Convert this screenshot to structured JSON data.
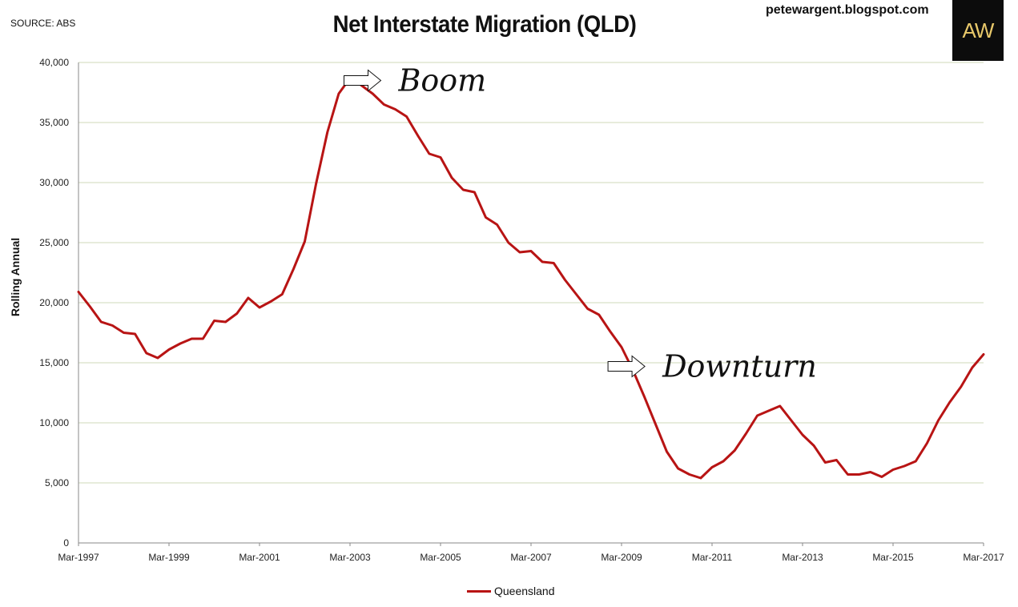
{
  "header": {
    "source": "SOURCE: ABS",
    "title": "Net Interstate Migration (QLD)",
    "blog": "petewargent.blogspot.com",
    "logo_text": "AW"
  },
  "chart_data": {
    "type": "line",
    "title": "Net Interstate Migration (QLD)",
    "xlabel": "",
    "ylabel": "Rolling Annual",
    "ylim": [
      0,
      40000
    ],
    "yticks": [
      0,
      5000,
      10000,
      15000,
      20000,
      25000,
      30000,
      35000,
      40000
    ],
    "ytick_labels": [
      "0",
      "5,000",
      "10,000",
      "15,000",
      "20,000",
      "25,000",
      "30,000",
      "35,000",
      "40,000"
    ],
    "xlim": [
      "Mar-1997",
      "Mar-2017"
    ],
    "xtick_labels": [
      "Mar-1997",
      "Mar-1999",
      "Mar-2001",
      "Mar-2003",
      "Mar-2005",
      "Mar-2007",
      "Mar-2009",
      "Mar-2011",
      "Mar-2013",
      "Mar-2015",
      "Mar-2017"
    ],
    "grid": true,
    "legend_position": "bottom-center",
    "series_color": "#b81414",
    "series": [
      {
        "name": "Queensland",
        "x": [
          "Mar-1997",
          "Jun-1997",
          "Sep-1997",
          "Dec-1997",
          "Mar-1998",
          "Jun-1998",
          "Sep-1998",
          "Dec-1998",
          "Mar-1999",
          "Jun-1999",
          "Sep-1999",
          "Dec-1999",
          "Mar-2000",
          "Jun-2000",
          "Sep-2000",
          "Dec-2000",
          "Mar-2001",
          "Jun-2001",
          "Sep-2001",
          "Dec-2001",
          "Mar-2002",
          "Jun-2002",
          "Sep-2002",
          "Dec-2002",
          "Mar-2003",
          "Jun-2003",
          "Sep-2003",
          "Dec-2003",
          "Mar-2004",
          "Jun-2004",
          "Sep-2004",
          "Dec-2004",
          "Mar-2005",
          "Jun-2005",
          "Sep-2005",
          "Dec-2005",
          "Mar-2006",
          "Jun-2006",
          "Sep-2006",
          "Dec-2006",
          "Mar-2007",
          "Jun-2007",
          "Sep-2007",
          "Dec-2007",
          "Mar-2008",
          "Jun-2008",
          "Sep-2008",
          "Dec-2008",
          "Mar-2009",
          "Jun-2009",
          "Sep-2009",
          "Dec-2009",
          "Mar-2010",
          "Jun-2010",
          "Sep-2010",
          "Dec-2010",
          "Mar-2011",
          "Jun-2011",
          "Sep-2011",
          "Dec-2011",
          "Mar-2012",
          "Jun-2012",
          "Sep-2012",
          "Dec-2012",
          "Mar-2013",
          "Jun-2013",
          "Sep-2013",
          "Dec-2013",
          "Mar-2014",
          "Jun-2014",
          "Sep-2014",
          "Dec-2014",
          "Mar-2015",
          "Jun-2015",
          "Sep-2015",
          "Dec-2015",
          "Mar-2016",
          "Jun-2016",
          "Sep-2016",
          "Dec-2016",
          "Mar-2017"
        ],
        "values": [
          20900,
          19700,
          18400,
          18100,
          17500,
          17400,
          15800,
          15400,
          16100,
          16600,
          17000,
          17000,
          18500,
          18400,
          19100,
          20400,
          19600,
          20100,
          20700,
          22800,
          25100,
          29900,
          34200,
          37400,
          38700,
          38100,
          37400,
          36500,
          36100,
          35500,
          33900,
          32400,
          32100,
          30400,
          29400,
          29200,
          27100,
          26500,
          25000,
          24200,
          24300,
          23400,
          23300,
          21900,
          20700,
          19500,
          19000,
          17600,
          16300,
          14400,
          12200,
          9900,
          7600,
          6200,
          5700,
          5400,
          6300,
          6800,
          7700,
          9100,
          10600,
          11000,
          11400,
          10200,
          9000,
          8100,
          6700,
          6900,
          5700,
          5700,
          5900,
          5500,
          6100,
          6400,
          6800,
          8300,
          10200,
          11700,
          13000,
          14600,
          15700
        ]
      }
    ],
    "annotations": [
      {
        "text": "Boom",
        "x": "Mar-2004",
        "y": 38500
      },
      {
        "text": "Downturn",
        "x": "Jan-2010",
        "y": 14700
      }
    ]
  }
}
